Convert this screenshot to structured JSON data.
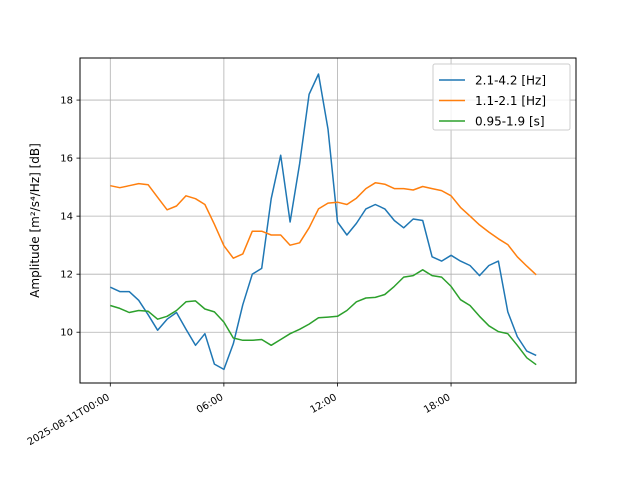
{
  "chart_data": {
    "type": "line",
    "title": "",
    "xlabel": "",
    "ylabel": "Amplitude [m²/s⁴/Hz] [dB]",
    "x": [
      "2025-08-11T00:00",
      "2025-08-11T00:30",
      "2025-08-11T01:00",
      "2025-08-11T01:30",
      "2025-08-11T02:00",
      "2025-08-11T02:30",
      "2025-08-11T03:00",
      "2025-08-11T03:30",
      "2025-08-11T04:00",
      "2025-08-11T04:30",
      "2025-08-11T05:00",
      "2025-08-11T05:30",
      "2025-08-11T06:00",
      "2025-08-11T06:30",
      "2025-08-11T07:00",
      "2025-08-11T07:30",
      "2025-08-11T08:00",
      "2025-08-11T08:30",
      "2025-08-11T09:00",
      "2025-08-11T09:30",
      "2025-08-11T10:00",
      "2025-08-11T10:30",
      "2025-08-11T11:00",
      "2025-08-11T11:30",
      "2025-08-11T12:00",
      "2025-08-11T12:30",
      "2025-08-11T13:00",
      "2025-08-11T13:30",
      "2025-08-11T14:00",
      "2025-08-11T14:30",
      "2025-08-11T15:00",
      "2025-08-11T15:30",
      "2025-08-11T16:00",
      "2025-08-11T16:30",
      "2025-08-11T17:00",
      "2025-08-11T17:30",
      "2025-08-11T18:00",
      "2025-08-11T18:30",
      "2025-08-11T19:00",
      "2025-08-11T19:30",
      "2025-08-11T20:00",
      "2025-08-11T20:30",
      "2025-08-11T21:00",
      "2025-08-11T21:30",
      "2025-08-11T22:00",
      "2025-08-11T22:30"
    ],
    "series": [
      {
        "name": "2.1-4.2 [Hz]",
        "color": "#1f77b4",
        "values": [
          11.55,
          11.4,
          11.4,
          11.1,
          10.6,
          10.07,
          10.45,
          10.68,
          10.1,
          9.55,
          9.95,
          8.9,
          8.72,
          9.6,
          10.95,
          12.0,
          12.2,
          14.6,
          16.1,
          13.8,
          15.8,
          18.2,
          18.9,
          17.0,
          13.8,
          13.35,
          13.75,
          14.25,
          14.4,
          14.25,
          13.85,
          13.6,
          13.9,
          13.85,
          12.6,
          12.45,
          12.65,
          12.45,
          12.3,
          11.95,
          12.3,
          12.45,
          10.7,
          9.85,
          9.35,
          9.2
        ]
      },
      {
        "name": "1.1-2.1 [Hz]",
        "color": "#ff7f0e",
        "values": [
          15.05,
          14.98,
          15.05,
          15.12,
          15.08,
          14.65,
          14.22,
          14.35,
          14.7,
          14.6,
          14.4,
          13.72,
          12.98,
          12.55,
          12.7,
          13.48,
          13.48,
          13.35,
          13.35,
          13.0,
          13.08,
          13.6,
          14.25,
          14.45,
          14.48,
          14.4,
          14.62,
          14.95,
          15.15,
          15.1,
          14.95,
          14.95,
          14.9,
          15.02,
          14.95,
          14.88,
          14.7,
          14.3,
          14.0,
          13.7,
          13.45,
          13.22,
          13.02,
          12.6,
          12.28,
          11.98
        ]
      },
      {
        "name": "0.95-1.9 [s]",
        "color": "#2ca02c",
        "values": [
          10.92,
          10.82,
          10.68,
          10.75,
          10.72,
          10.45,
          10.55,
          10.75,
          11.05,
          11.08,
          10.8,
          10.7,
          10.35,
          9.8,
          9.72,
          9.72,
          9.75,
          9.55,
          9.75,
          9.95,
          10.1,
          10.28,
          10.5,
          10.52,
          10.55,
          10.75,
          11.05,
          11.18,
          11.2,
          11.3,
          11.58,
          11.9,
          11.95,
          12.15,
          11.95,
          11.9,
          11.58,
          11.12,
          10.92,
          10.55,
          10.22,
          10.02,
          9.95,
          9.55,
          9.12,
          8.88
        ]
      }
    ],
    "xlim": [
      "2025-08-10T22:24",
      "2025-08-12T00:36"
    ],
    "ylim": [
      8.25,
      19.45
    ],
    "x_ticks": [
      "2025-08-11T00:00",
      "06:00",
      "12:00",
      "18:00"
    ],
    "y_ticks": [
      10,
      12,
      14,
      16,
      18
    ],
    "grid": true,
    "legend_position": "top-right"
  }
}
